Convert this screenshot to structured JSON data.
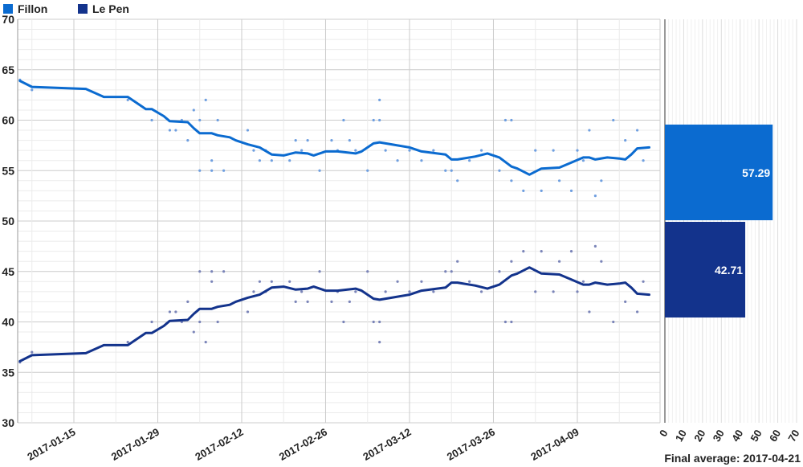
{
  "colors": {
    "fillon": "#0b6bd0",
    "lepen": "#13338c",
    "dot_fillon": "#6f9fe0",
    "dot_lepen": "#7a84b8"
  },
  "legend": [
    {
      "label": "Fillon",
      "color": "#0b6bd0"
    },
    {
      "label": "Le Pen",
      "color": "#13338c"
    }
  ],
  "chart_data": [
    {
      "type": "line",
      "legend_position": "top-left",
      "grid": true,
      "ylim": [
        30,
        70
      ],
      "yticks": [
        30,
        35,
        40,
        45,
        50,
        55,
        60,
        65,
        70
      ],
      "xticks": [
        "2017-01-15",
        "2017-01-29",
        "2017-02-12",
        "2017-02-26",
        "2017-03-12",
        "2017-03-26",
        "2017-04-09"
      ],
      "series": [
        {
          "name": "Fillon",
          "line": [
            [
              "2017-01-06",
              63.9
            ],
            [
              "2017-01-08",
              63.3
            ],
            [
              "2017-01-17",
              63.1
            ],
            [
              "2017-01-20",
              62.3
            ],
            [
              "2017-01-24",
              62.3
            ],
            [
              "2017-01-27",
              61.1
            ],
            [
              "2017-01-28",
              61.1
            ],
            [
              "2017-01-30",
              60.4
            ],
            [
              "2017-01-31",
              59.9
            ],
            [
              "2017-02-03",
              59.8
            ],
            [
              "2017-02-04",
              59.2
            ],
            [
              "2017-02-05",
              58.7
            ],
            [
              "2017-02-07",
              58.7
            ],
            [
              "2017-02-08",
              58.5
            ],
            [
              "2017-02-10",
              58.3
            ],
            [
              "2017-02-11",
              58.0
            ],
            [
              "2017-02-13",
              57.6
            ],
            [
              "2017-02-15",
              57.3
            ],
            [
              "2017-02-17",
              56.6
            ],
            [
              "2017-02-19",
              56.5
            ],
            [
              "2017-02-21",
              56.8
            ],
            [
              "2017-02-23",
              56.7
            ],
            [
              "2017-02-24",
              56.5
            ],
            [
              "2017-02-26",
              56.9
            ],
            [
              "2017-02-28",
              56.9
            ],
            [
              "2017-03-03",
              56.7
            ],
            [
              "2017-03-04",
              56.9
            ],
            [
              "2017-03-06",
              57.7
            ],
            [
              "2017-03-07",
              57.8
            ],
            [
              "2017-03-09",
              57.6
            ],
            [
              "2017-03-12",
              57.3
            ],
            [
              "2017-03-14",
              56.9
            ],
            [
              "2017-03-18",
              56.6
            ],
            [
              "2017-03-19",
              56.1
            ],
            [
              "2017-03-20",
              56.1
            ],
            [
              "2017-03-23",
              56.4
            ],
            [
              "2017-03-25",
              56.7
            ],
            [
              "2017-03-27",
              56.3
            ],
            [
              "2017-03-29",
              55.4
            ],
            [
              "2017-03-30",
              55.2
            ],
            [
              "2017-04-01",
              54.6
            ],
            [
              "2017-04-03",
              55.2
            ],
            [
              "2017-04-06",
              55.3
            ],
            [
              "2017-04-08",
              55.8
            ],
            [
              "2017-04-10",
              56.3
            ],
            [
              "2017-04-11",
              56.3
            ],
            [
              "2017-04-12",
              56.1
            ],
            [
              "2017-04-14",
              56.3
            ],
            [
              "2017-04-16",
              56.2
            ],
            [
              "2017-04-17",
              56.1
            ],
            [
              "2017-04-18",
              56.6
            ],
            [
              "2017-04-19",
              57.2
            ],
            [
              "2017-04-21",
              57.3
            ]
          ],
          "polls": [
            [
              "2017-01-06",
              64
            ],
            [
              "2017-01-08",
              63
            ],
            [
              "2017-01-24",
              62
            ],
            [
              "2017-01-28",
              60
            ],
            [
              "2017-01-31",
              59
            ],
            [
              "2017-02-01",
              59
            ],
            [
              "2017-02-02",
              60
            ],
            [
              "2017-02-03",
              58
            ],
            [
              "2017-02-04",
              61
            ],
            [
              "2017-02-05",
              55
            ],
            [
              "2017-02-05",
              60
            ],
            [
              "2017-02-06",
              62
            ],
            [
              "2017-02-07",
              56
            ],
            [
              "2017-02-07",
              55
            ],
            [
              "2017-02-08",
              60
            ],
            [
              "2017-02-09",
              55
            ],
            [
              "2017-02-13",
              59
            ],
            [
              "2017-02-14",
              57
            ],
            [
              "2017-02-15",
              56
            ],
            [
              "2017-02-16",
              57
            ],
            [
              "2017-02-17",
              56
            ],
            [
              "2017-02-20",
              56
            ],
            [
              "2017-02-21",
              58
            ],
            [
              "2017-02-22",
              57
            ],
            [
              "2017-02-23",
              58
            ],
            [
              "2017-02-25",
              55
            ],
            [
              "2017-02-27",
              58
            ],
            [
              "2017-02-28",
              57
            ],
            [
              "2017-03-01",
              60
            ],
            [
              "2017-03-02",
              58
            ],
            [
              "2017-03-03",
              57
            ],
            [
              "2017-03-05",
              55
            ],
            [
              "2017-03-06",
              60
            ],
            [
              "2017-03-07",
              62
            ],
            [
              "2017-03-07",
              60
            ],
            [
              "2017-03-08",
              57
            ],
            [
              "2017-03-10",
              56
            ],
            [
              "2017-03-12",
              57
            ],
            [
              "2017-03-14",
              56
            ],
            [
              "2017-03-16",
              57
            ],
            [
              "2017-03-18",
              55
            ],
            [
              "2017-03-19",
              55
            ],
            [
              "2017-03-20",
              54
            ],
            [
              "2017-03-22",
              56
            ],
            [
              "2017-03-24",
              57
            ],
            [
              "2017-03-27",
              55
            ],
            [
              "2017-03-28",
              60
            ],
            [
              "2017-03-29",
              60
            ],
            [
              "2017-03-29",
              54
            ],
            [
              "2017-03-31",
              53
            ],
            [
              "2017-04-02",
              57
            ],
            [
              "2017-04-03",
              53
            ],
            [
              "2017-04-05",
              57
            ],
            [
              "2017-04-06",
              54
            ],
            [
              "2017-04-08",
              53
            ],
            [
              "2017-04-09",
              57
            ],
            [
              "2017-04-10",
              56
            ],
            [
              "2017-04-11",
              59
            ],
            [
              "2017-04-12",
              52.5
            ],
            [
              "2017-04-13",
              54
            ],
            [
              "2017-04-15",
              60
            ],
            [
              "2017-04-17",
              58
            ],
            [
              "2017-04-19",
              59
            ],
            [
              "2017-04-20",
              56
            ]
          ]
        },
        {
          "name": "Le Pen",
          "line": [
            [
              "2017-01-06",
              36.1
            ],
            [
              "2017-01-08",
              36.7
            ],
            [
              "2017-01-17",
              36.9
            ],
            [
              "2017-01-20",
              37.7
            ],
            [
              "2017-01-24",
              37.7
            ],
            [
              "2017-01-27",
              38.9
            ],
            [
              "2017-01-28",
              38.9
            ],
            [
              "2017-01-30",
              39.6
            ],
            [
              "2017-01-31",
              40.1
            ],
            [
              "2017-02-03",
              40.2
            ],
            [
              "2017-02-04",
              40.8
            ],
            [
              "2017-02-05",
              41.3
            ],
            [
              "2017-02-07",
              41.3
            ],
            [
              "2017-02-08",
              41.5
            ],
            [
              "2017-02-10",
              41.7
            ],
            [
              "2017-02-11",
              42.0
            ],
            [
              "2017-02-13",
              42.4
            ],
            [
              "2017-02-15",
              42.7
            ],
            [
              "2017-02-17",
              43.4
            ],
            [
              "2017-02-19",
              43.5
            ],
            [
              "2017-02-21",
              43.2
            ],
            [
              "2017-02-23",
              43.3
            ],
            [
              "2017-02-24",
              43.5
            ],
            [
              "2017-02-26",
              43.1
            ],
            [
              "2017-02-28",
              43.1
            ],
            [
              "2017-03-03",
              43.3
            ],
            [
              "2017-03-04",
              43.1
            ],
            [
              "2017-03-06",
              42.3
            ],
            [
              "2017-03-07",
              42.2
            ],
            [
              "2017-03-09",
              42.4
            ],
            [
              "2017-03-12",
              42.7
            ],
            [
              "2017-03-14",
              43.1
            ],
            [
              "2017-03-18",
              43.4
            ],
            [
              "2017-03-19",
              43.9
            ],
            [
              "2017-03-20",
              43.9
            ],
            [
              "2017-03-23",
              43.6
            ],
            [
              "2017-03-25",
              43.3
            ],
            [
              "2017-03-27",
              43.7
            ],
            [
              "2017-03-29",
              44.6
            ],
            [
              "2017-03-30",
              44.8
            ],
            [
              "2017-04-01",
              45.4
            ],
            [
              "2017-04-03",
              44.8
            ],
            [
              "2017-04-06",
              44.7
            ],
            [
              "2017-04-08",
              44.2
            ],
            [
              "2017-04-10",
              43.7
            ],
            [
              "2017-04-11",
              43.7
            ],
            [
              "2017-04-12",
              43.9
            ],
            [
              "2017-04-14",
              43.7
            ],
            [
              "2017-04-16",
              43.8
            ],
            [
              "2017-04-17",
              43.9
            ],
            [
              "2017-04-18",
              43.4
            ],
            [
              "2017-04-19",
              42.8
            ],
            [
              "2017-04-21",
              42.7
            ]
          ],
          "polls": [
            [
              "2017-01-06",
              36
            ],
            [
              "2017-01-08",
              37
            ],
            [
              "2017-01-24",
              38
            ],
            [
              "2017-01-28",
              40
            ],
            [
              "2017-01-31",
              41
            ],
            [
              "2017-02-01",
              41
            ],
            [
              "2017-02-02",
              40
            ],
            [
              "2017-02-03",
              42
            ],
            [
              "2017-02-04",
              39
            ],
            [
              "2017-02-05",
              45
            ],
            [
              "2017-02-05",
              40
            ],
            [
              "2017-02-06",
              38
            ],
            [
              "2017-02-07",
              44
            ],
            [
              "2017-02-07",
              45
            ],
            [
              "2017-02-08",
              40
            ],
            [
              "2017-02-09",
              45
            ],
            [
              "2017-02-13",
              41
            ],
            [
              "2017-02-14",
              43
            ],
            [
              "2017-02-15",
              44
            ],
            [
              "2017-02-16",
              43
            ],
            [
              "2017-02-17",
              44
            ],
            [
              "2017-02-20",
              44
            ],
            [
              "2017-02-21",
              42
            ],
            [
              "2017-02-22",
              43
            ],
            [
              "2017-02-23",
              42
            ],
            [
              "2017-02-25",
              45
            ],
            [
              "2017-02-27",
              42
            ],
            [
              "2017-02-28",
              43
            ],
            [
              "2017-03-01",
              40
            ],
            [
              "2017-03-02",
              42
            ],
            [
              "2017-03-03",
              43
            ],
            [
              "2017-03-05",
              45
            ],
            [
              "2017-03-06",
              40
            ],
            [
              "2017-03-07",
              38
            ],
            [
              "2017-03-07",
              40
            ],
            [
              "2017-03-08",
              43
            ],
            [
              "2017-03-10",
              44
            ],
            [
              "2017-03-12",
              43
            ],
            [
              "2017-03-14",
              44
            ],
            [
              "2017-03-16",
              43
            ],
            [
              "2017-03-18",
              45
            ],
            [
              "2017-03-19",
              45
            ],
            [
              "2017-03-20",
              46
            ],
            [
              "2017-03-22",
              44
            ],
            [
              "2017-03-24",
              43
            ],
            [
              "2017-03-27",
              45
            ],
            [
              "2017-03-28",
              40
            ],
            [
              "2017-03-29",
              40
            ],
            [
              "2017-03-29",
              46
            ],
            [
              "2017-03-31",
              47
            ],
            [
              "2017-04-02",
              43
            ],
            [
              "2017-04-03",
              47
            ],
            [
              "2017-04-05",
              43
            ],
            [
              "2017-04-06",
              46
            ],
            [
              "2017-04-08",
              47
            ],
            [
              "2017-04-09",
              43
            ],
            [
              "2017-04-10",
              44
            ],
            [
              "2017-04-11",
              41
            ],
            [
              "2017-04-12",
              47.5
            ],
            [
              "2017-04-13",
              46
            ],
            [
              "2017-04-15",
              40
            ],
            [
              "2017-04-17",
              42
            ],
            [
              "2017-04-19",
              41
            ],
            [
              "2017-04-20",
              44
            ]
          ]
        }
      ]
    },
    {
      "type": "bar",
      "orientation": "horizontal",
      "xlabel": "Final average: 2017-04-21",
      "xlim": [
        0,
        70
      ],
      "xticks": [
        0,
        10,
        20,
        30,
        40,
        50,
        60,
        70
      ],
      "categories": [
        "Fillon",
        "Le Pen"
      ],
      "values": [
        57.29,
        42.71
      ],
      "labels": [
        "57.29",
        "42.71"
      ]
    }
  ]
}
